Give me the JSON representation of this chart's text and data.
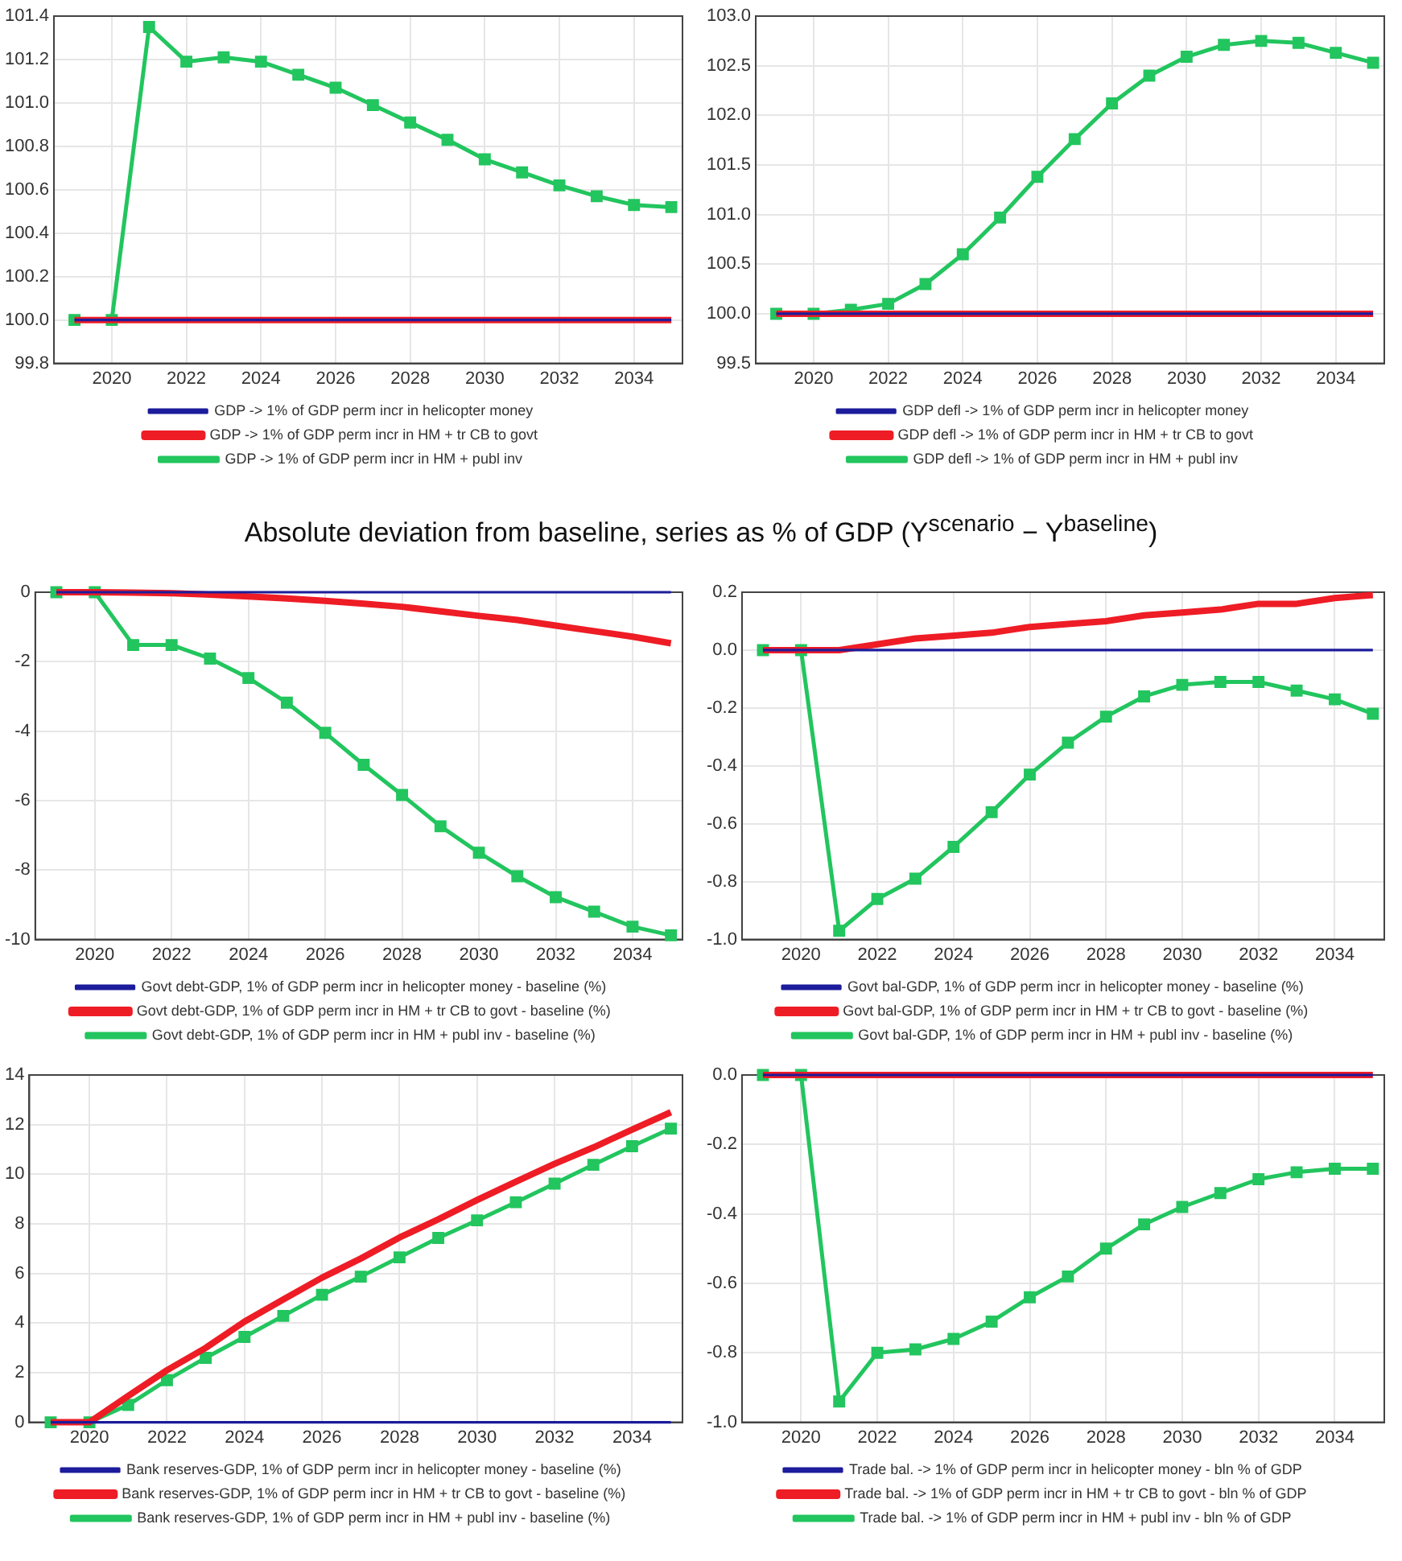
{
  "chart_data": [
    {
      "type": "line",
      "x": [
        2019,
        2020,
        2021,
        2022,
        2023,
        2024,
        2025,
        2026,
        2027,
        2028,
        2029,
        2030,
        2031,
        2032,
        2033,
        2034,
        2035
      ],
      "xlim": [
        2018.45,
        2035.3
      ],
      "xticks": [
        2020,
        2022,
        2024,
        2026,
        2028,
        2030,
        2032,
        2034
      ],
      "ylim": [
        99.8,
        101.4
      ],
      "yticks": [
        {
          "value": 99.8,
          "label": "99.8"
        },
        {
          "value": 100,
          "label": "100.0"
        },
        {
          "value": 100.2,
          "label": "100.2"
        },
        {
          "value": 100.4,
          "label": "100.4"
        },
        {
          "value": 100.6,
          "label": "100.6"
        },
        {
          "value": 100.8,
          "label": "100.8"
        },
        {
          "value": 101,
          "label": "101.0"
        },
        {
          "value": 101.2,
          "label": "101.2"
        },
        {
          "value": 101.4,
          "label": "101.4"
        }
      ],
      "grid": true,
      "legend": "bottom",
      "series": [
        {
          "name": "GDP -> 1% of GDP perm incr in helicopter money",
          "color": "#1c1c9c",
          "marker": "none",
          "values": [
            100,
            100,
            100,
            100,
            100,
            100,
            100,
            100,
            100,
            100,
            100,
            100,
            100,
            100,
            100,
            100,
            100
          ]
        },
        {
          "name": "GDP -> 1% of GDP perm incr in HM + tr CB to govt",
          "color": "#ee1c25",
          "marker": "none",
          "values": [
            100,
            100,
            100,
            100,
            100,
            100,
            100,
            100,
            100,
            100,
            100,
            100,
            100,
            100,
            100,
            100,
            100
          ]
        },
        {
          "name": "GDP -> 1% of GDP perm incr in HM + publ inv",
          "color": "#22c55e",
          "marker": "square",
          "values": [
            100,
            100,
            101.35,
            101.19,
            101.21,
            101.19,
            101.13,
            101.07,
            100.99,
            100.91,
            100.83,
            100.74,
            100.68,
            100.62,
            100.57,
            100.53,
            100.52
          ]
        }
      ]
    },
    {
      "type": "line",
      "x": [
        2019,
        2020,
        2021,
        2022,
        2023,
        2024,
        2025,
        2026,
        2027,
        2028,
        2029,
        2030,
        2031,
        2032,
        2033,
        2034,
        2035
      ],
      "xlim": [
        2018.45,
        2035.3
      ],
      "xticks": [
        2020,
        2022,
        2024,
        2026,
        2028,
        2030,
        2032,
        2034
      ],
      "ylim": [
        99.5,
        103
      ],
      "yticks": [
        99.5,
        {
          "value": 100,
          "label": "100.0"
        },
        100.5,
        {
          "value": 101,
          "label": "101.0"
        },
        101.5,
        {
          "value": 102,
          "label": "102.0"
        },
        102.5,
        {
          "value": 103,
          "label": "103.0"
        }
      ],
      "grid": true,
      "legend": "bottom",
      "series": [
        {
          "name": "GDP defl -> 1% of GDP perm incr in helicopter money",
          "color": "#1c1c9c",
          "marker": "none",
          "values": [
            100,
            100,
            100,
            100,
            100,
            100,
            100,
            100,
            100,
            100,
            100,
            100,
            100,
            100,
            100,
            100,
            100
          ]
        },
        {
          "name": "GDP defl -> 1% of GDP perm incr in HM + tr CB to govt",
          "color": "#ee1c25",
          "marker": "none",
          "values": [
            100,
            100,
            100,
            100,
            100,
            100,
            100,
            100,
            100,
            100,
            100,
            100,
            100,
            100,
            100,
            100,
            100
          ]
        },
        {
          "name": "GDP defl -> 1% of GDP perm incr in HM + publ inv",
          "color": "#22c55e",
          "marker": "square",
          "values": [
            100,
            100,
            100.04,
            100.1,
            100.3,
            100.6,
            100.97,
            101.38,
            101.76,
            102.12,
            102.4,
            102.59,
            102.71,
            102.75,
            102.73,
            102.63,
            102.53
          ]
        }
      ]
    },
    {
      "type": "line",
      "title": "Absolute deviation from baseline, series as % of GDP (Y$^{scenario}$ − Y$^{baseline}$)",
      "x": [
        2019,
        2020,
        2021,
        2022,
        2023,
        2024,
        2025,
        2026,
        2027,
        2028,
        2029,
        2030,
        2031,
        2032,
        2033,
        2034,
        2035
      ],
      "xlim": [
        2018.45,
        2035.3
      ],
      "xticks": [
        2020,
        2022,
        2024,
        2026,
        2028,
        2030,
        2032,
        2034
      ],
      "ylim": [
        -10,
        0
      ],
      "yticks": [
        -10,
        -8,
        -6,
        -4,
        -2,
        0
      ],
      "grid": true,
      "legend": "bottom",
      "series": [
        {
          "name": "Govt debt-GDP, 1% of GDP perm incr in helicopter money - baseline (%)",
          "color": "#1c1c9c",
          "marker": "none",
          "values": [
            0,
            0,
            0,
            0,
            0,
            0,
            0,
            0,
            0,
            0,
            0,
            0,
            0,
            0,
            0,
            0,
            0
          ]
        },
        {
          "name": "Govt debt-GDP, 1% of GDP perm incr in HM + tr CB to govt - baseline (%)",
          "color": "#ee1c25",
          "marker": "none",
          "values": [
            0,
            0,
            -0.01,
            -0.03,
            -0.07,
            -0.12,
            -0.18,
            -0.25,
            -0.33,
            -0.42,
            -0.55,
            -0.68,
            -0.8,
            -0.96,
            -1.12,
            -1.28,
            -1.47
          ]
        },
        {
          "name": "Govt debt-GDP, 1% of GDP perm incr in HM + publ inv - baseline (%)",
          "color": "#22c55e",
          "marker": "square",
          "values": [
            0,
            0,
            -1.52,
            -1.52,
            -1.91,
            -2.47,
            -3.18,
            -4.05,
            -4.97,
            -5.84,
            -6.74,
            -7.5,
            -8.18,
            -8.78,
            -9.2,
            -9.63,
            -9.88
          ]
        }
      ]
    },
    {
      "type": "line",
      "x": [
        2019,
        2020,
        2021,
        2022,
        2023,
        2024,
        2025,
        2026,
        2027,
        2028,
        2029,
        2030,
        2031,
        2032,
        2033,
        2034,
        2035
      ],
      "xlim": [
        2018.45,
        2035.3
      ],
      "xticks": [
        2020,
        2022,
        2024,
        2026,
        2028,
        2030,
        2032,
        2034
      ],
      "ylim": [
        -1,
        0.2
      ],
      "yticks": [
        {
          "value": -1,
          "label": "-1.0"
        },
        -0.8,
        -0.6,
        -0.4,
        -0.2,
        {
          "value": 0,
          "label": "0.0"
        },
        0.2
      ],
      "grid": true,
      "legend": "bottom",
      "series": [
        {
          "name": "Govt bal-GDP, 1% of GDP perm incr in helicopter money - baseline (%)",
          "color": "#1c1c9c",
          "marker": "none",
          "values": [
            0,
            0,
            0,
            0,
            0,
            0,
            0,
            0,
            0,
            0,
            0,
            0,
            0,
            0,
            0,
            0,
            0
          ]
        },
        {
          "name": "Govt bal-GDP, 1% of GDP perm incr in HM + tr CB to govt - baseline (%)",
          "color": "#ee1c25",
          "marker": "none",
          "values": [
            0,
            0,
            0,
            0.02,
            0.04,
            0.05,
            0.06,
            0.08,
            0.09,
            0.1,
            0.12,
            0.13,
            0.14,
            0.16,
            0.16,
            0.18,
            0.19
          ]
        },
        {
          "name": "Govt bal-GDP, 1% of GDP perm incr in HM + publ inv - baseline (%)",
          "color": "#22c55e",
          "marker": "square",
          "values": [
            0,
            0,
            -0.97,
            -0.86,
            -0.79,
            -0.68,
            -0.56,
            -0.43,
            -0.32,
            -0.23,
            -0.16,
            -0.12,
            -0.11,
            -0.11,
            -0.14,
            -0.17,
            -0.22
          ]
        }
      ]
    },
    {
      "type": "line",
      "x": [
        2019,
        2020,
        2021,
        2022,
        2023,
        2024,
        2025,
        2026,
        2027,
        2028,
        2029,
        2030,
        2031,
        2032,
        2033,
        2034,
        2035
      ],
      "xlim": [
        2018.45,
        2035.3
      ],
      "xticks": [
        2020,
        2022,
        2024,
        2026,
        2028,
        2030,
        2032,
        2034
      ],
      "ylim": [
        0,
        14
      ],
      "yticks": [
        0,
        2,
        4,
        6,
        8,
        10,
        12,
        14
      ],
      "grid": true,
      "legend": "bottom",
      "series": [
        {
          "name": "Bank reserves-GDP, 1% of GDP perm incr in helicopter money - baseline (%)",
          "color": "#1c1c9c",
          "marker": "none",
          "values": [
            0,
            0,
            0,
            0,
            0,
            0,
            0,
            0,
            0,
            0,
            0,
            0,
            0,
            0,
            0,
            0,
            0
          ]
        },
        {
          "name": "Bank reserves-GDP, 1% of GDP perm incr in HM + tr CB to govt - baseline (%)",
          "color": "#ee1c25",
          "marker": "none",
          "values": [
            0,
            0,
            1.06,
            2.1,
            3.0,
            4.06,
            4.95,
            5.83,
            6.6,
            7.45,
            8.18,
            8.96,
            9.7,
            10.42,
            11.08,
            11.8,
            12.5
          ]
        },
        {
          "name": "Bank reserves-GDP, 1% of GDP perm incr in HM + publ inv - baseline (%)",
          "color": "#22c55e",
          "marker": "square",
          "values": [
            0,
            0,
            0.7,
            1.7,
            2.6,
            3.44,
            4.29,
            5.14,
            5.87,
            6.65,
            7.43,
            8.14,
            8.87,
            9.62,
            10.38,
            11.13,
            11.84
          ]
        }
      ]
    },
    {
      "type": "line",
      "x": [
        2019,
        2020,
        2021,
        2022,
        2023,
        2024,
        2025,
        2026,
        2027,
        2028,
        2029,
        2030,
        2031,
        2032,
        2033,
        2034,
        2035
      ],
      "xlim": [
        2018.45,
        2035.3
      ],
      "xticks": [
        2020,
        2022,
        2024,
        2026,
        2028,
        2030,
        2032,
        2034
      ],
      "ylim": [
        -1,
        0
      ],
      "yticks": [
        {
          "value": -1,
          "label": "-1.0"
        },
        -0.8,
        -0.6,
        -0.4,
        -0.2,
        {
          "value": 0,
          "label": "0.0"
        }
      ],
      "grid": true,
      "legend": "bottom",
      "series": [
        {
          "name": "Trade bal. -> 1% of GDP perm incr in helicopter money - bln % of GDP",
          "color": "#1c1c9c",
          "marker": "none",
          "values": [
            0,
            0,
            0,
            0,
            0,
            0,
            0,
            0,
            0,
            0,
            0,
            0,
            0,
            0,
            0,
            0,
            0
          ]
        },
        {
          "name": "Trade bal. -> 1% of GDP perm incr in HM + tr CB to govt - bln % of GDP",
          "color": "#ee1c25",
          "marker": "none",
          "values": [
            0,
            0,
            0,
            0,
            0,
            0,
            0,
            0,
            0,
            0,
            0,
            0,
            0,
            0,
            0,
            0,
            0
          ]
        },
        {
          "name": "Trade bal. -> 1% of GDP perm incr in HM + publ inv - bln % of GDP",
          "color": "#22c55e",
          "marker": "square",
          "values": [
            0,
            0,
            -0.94,
            -0.8,
            -0.79,
            -0.76,
            -0.71,
            -0.64,
            -0.58,
            -0.5,
            -0.43,
            -0.38,
            -0.34,
            -0.3,
            -0.28,
            -0.27,
            -0.27
          ]
        }
      ]
    }
  ]
}
